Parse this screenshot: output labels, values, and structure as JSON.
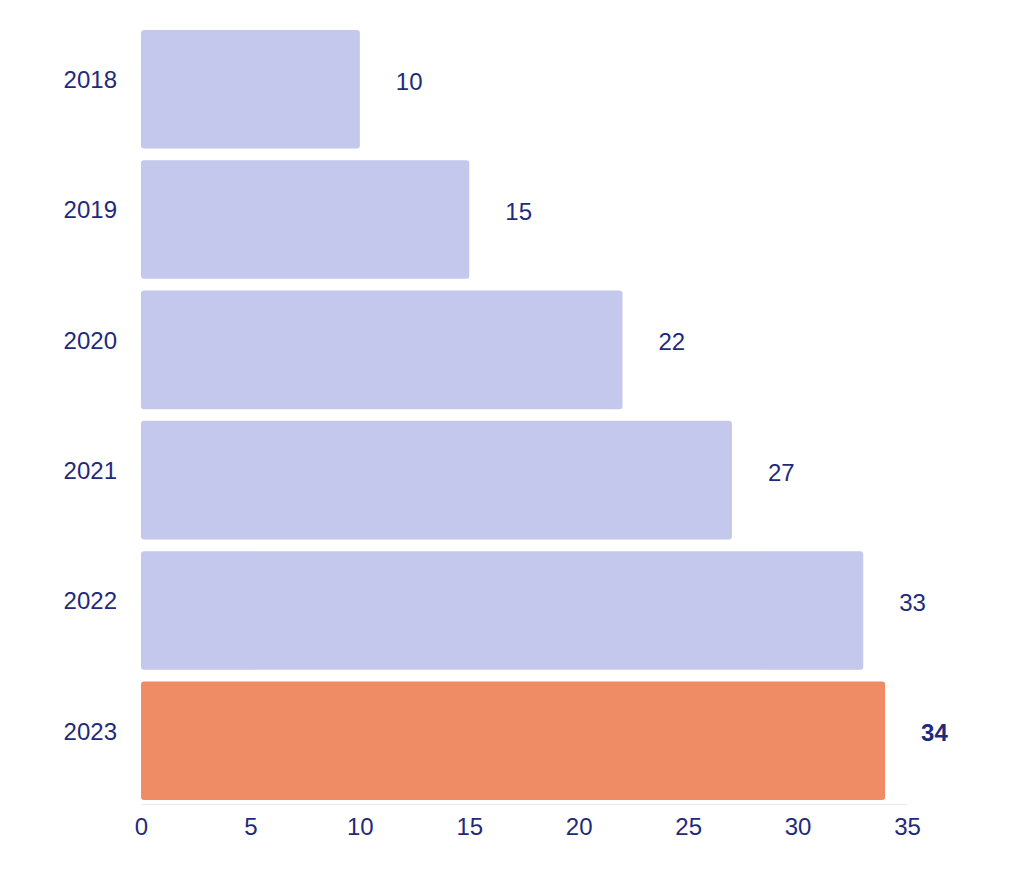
{
  "chart_data": {
    "type": "bar",
    "orientation": "horizontal",
    "categories": [
      "2018",
      "2019",
      "2020",
      "2021",
      "2022",
      "2023"
    ],
    "values": [
      10,
      15,
      22,
      27,
      33,
      34
    ],
    "colors": [
      "#c3c8ec",
      "#c3c8ec",
      "#c3c8ec",
      "#c3c8ec",
      "#c3c8ec",
      "#f08c65"
    ],
    "xlim": [
      0,
      35
    ],
    "xticks": [
      0,
      5,
      10,
      15,
      20,
      25,
      30,
      35
    ],
    "data_labels": true,
    "grid": false
  }
}
